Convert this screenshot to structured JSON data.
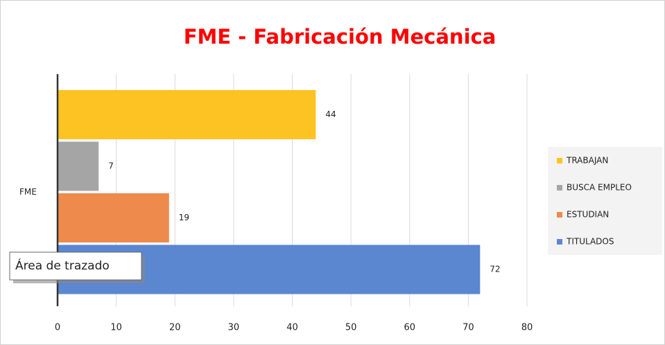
{
  "chart_data": {
    "type": "bar",
    "orientation": "horizontal",
    "title": "FME - Fabricación Mecánica",
    "categories": [
      "FME"
    ],
    "series": [
      {
        "name": "TRABAJAN",
        "color": "#fdc322",
        "values": [
          44
        ]
      },
      {
        "name": "BUSCA EMPLEO",
        "color": "#a5a5a5",
        "values": [
          7
        ]
      },
      {
        "name": "ESTUDIAN",
        "color": "#ed8a4c",
        "values": [
          19
        ]
      },
      {
        "name": "TITULADOS",
        "color": "#5b86d0",
        "values": [
          72
        ]
      }
    ],
    "xlim": [
      0,
      80
    ],
    "xticks": [
      0,
      10,
      20,
      30,
      40,
      50,
      60,
      70,
      80
    ],
    "grid": true,
    "legend": "right",
    "tooltip": "Área de trazado"
  }
}
